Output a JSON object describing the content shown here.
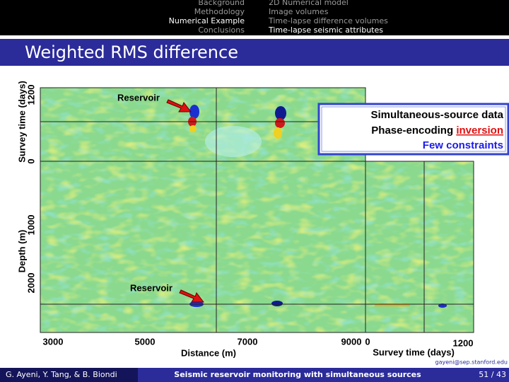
{
  "nav": {
    "sections": [
      "Background",
      "Methodology",
      "Numerical Example",
      "Conclusions"
    ],
    "subsections": [
      "2D Numerical model",
      "Image volumes",
      "Time-lapse difference volumes",
      "Time-lapse seismic attributes"
    ]
  },
  "title": "Weighted RMS difference",
  "figure": {
    "top_axis_label": "Survey time (days)",
    "top_ticks": [
      "1200",
      "0"
    ],
    "depth_label": "Depth (m)",
    "depth_ticks": [
      "1000",
      "2000"
    ],
    "distance_ticks": [
      "3000",
      "5000",
      "7000",
      "9000"
    ],
    "distance_label": "Distance (m)",
    "time_ticks": [
      "0",
      "1200"
    ],
    "time_label": "Survey time (days)",
    "annotations": [
      "Reservoir",
      "Reservoir"
    ]
  },
  "box": {
    "line1": "Simultaneous-source data",
    "line2_prefix": "Phase-encoding",
    "line2_highlight": "inversion",
    "line3": "Few constraints"
  },
  "footer": {
    "email": "gayeni@sep.stanford.edu",
    "authors": "G. Ayeni, Y. Tang, & B. Biondi",
    "talk": "Seismic reservoir monitoring with simultaneous sources",
    "page": "51 / 43"
  }
}
